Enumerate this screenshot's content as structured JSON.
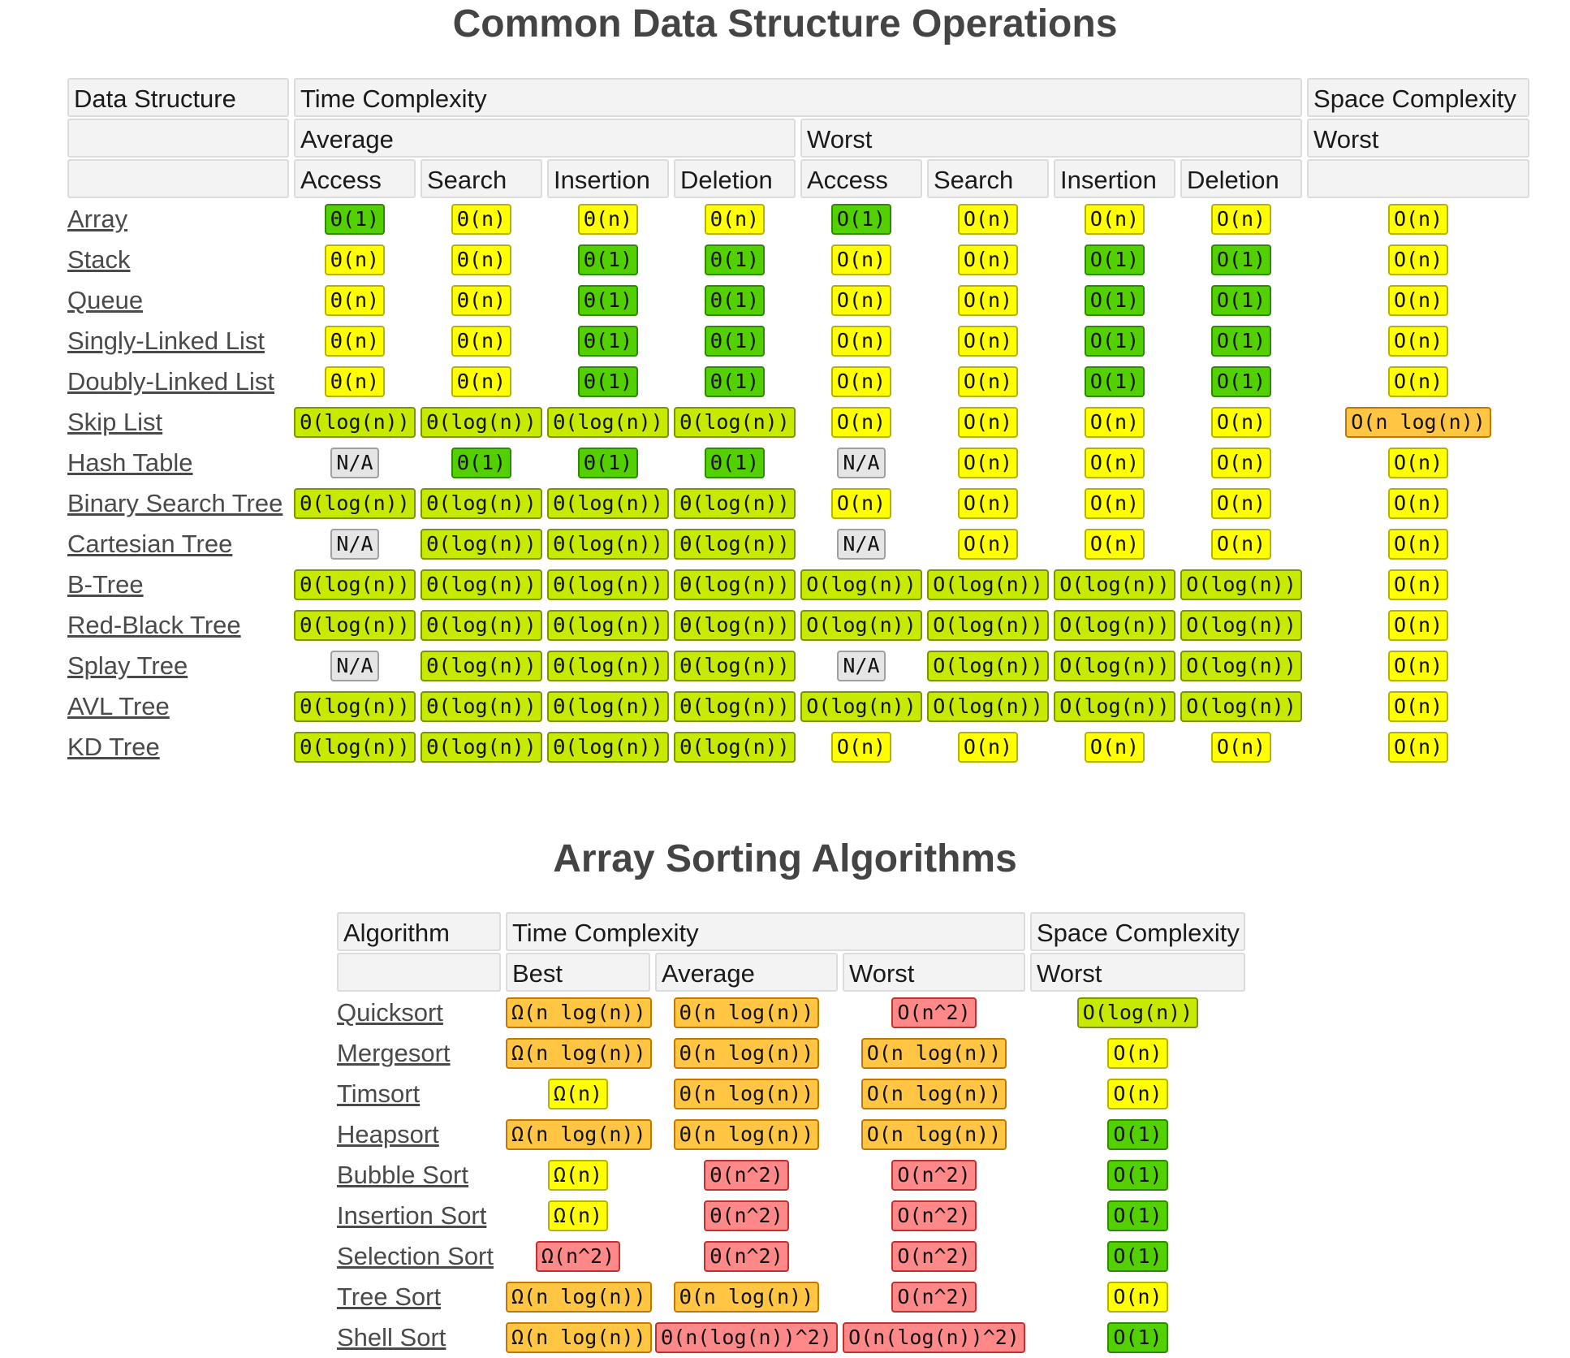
{
  "section1": {
    "title": "Common Data Structure Operations",
    "headers": {
      "data_structure": "Data Structure",
      "time_complexity": "Time Complexity",
      "space_complexity": "Space Complexity",
      "average": "Average",
      "worst": "Worst",
      "space_worst": "Worst",
      "ops": [
        "Access",
        "Search",
        "Insertion",
        "Deletion",
        "Access",
        "Search",
        "Insertion",
        "Deletion"
      ]
    },
    "rows": [
      {
        "name": "Array",
        "cells": [
          [
            "Θ(1)",
            "green"
          ],
          [
            "Θ(n)",
            "yellow"
          ],
          [
            "Θ(n)",
            "yellow"
          ],
          [
            "Θ(n)",
            "yellow"
          ],
          [
            "O(1)",
            "green"
          ],
          [
            "O(n)",
            "yellow"
          ],
          [
            "O(n)",
            "yellow"
          ],
          [
            "O(n)",
            "yellow"
          ],
          [
            "O(n)",
            "yellow"
          ]
        ]
      },
      {
        "name": "Stack",
        "cells": [
          [
            "Θ(n)",
            "yellow"
          ],
          [
            "Θ(n)",
            "yellow"
          ],
          [
            "Θ(1)",
            "green"
          ],
          [
            "Θ(1)",
            "green"
          ],
          [
            "O(n)",
            "yellow"
          ],
          [
            "O(n)",
            "yellow"
          ],
          [
            "O(1)",
            "green"
          ],
          [
            "O(1)",
            "green"
          ],
          [
            "O(n)",
            "yellow"
          ]
        ]
      },
      {
        "name": "Queue",
        "cells": [
          [
            "Θ(n)",
            "yellow"
          ],
          [
            "Θ(n)",
            "yellow"
          ],
          [
            "Θ(1)",
            "green"
          ],
          [
            "Θ(1)",
            "green"
          ],
          [
            "O(n)",
            "yellow"
          ],
          [
            "O(n)",
            "yellow"
          ],
          [
            "O(1)",
            "green"
          ],
          [
            "O(1)",
            "green"
          ],
          [
            "O(n)",
            "yellow"
          ]
        ]
      },
      {
        "name": "Singly-Linked List",
        "cells": [
          [
            "Θ(n)",
            "yellow"
          ],
          [
            "Θ(n)",
            "yellow"
          ],
          [
            "Θ(1)",
            "green"
          ],
          [
            "Θ(1)",
            "green"
          ],
          [
            "O(n)",
            "yellow"
          ],
          [
            "O(n)",
            "yellow"
          ],
          [
            "O(1)",
            "green"
          ],
          [
            "O(1)",
            "green"
          ],
          [
            "O(n)",
            "yellow"
          ]
        ]
      },
      {
        "name": "Doubly-Linked List",
        "cells": [
          [
            "Θ(n)",
            "yellow"
          ],
          [
            "Θ(n)",
            "yellow"
          ],
          [
            "Θ(1)",
            "green"
          ],
          [
            "Θ(1)",
            "green"
          ],
          [
            "O(n)",
            "yellow"
          ],
          [
            "O(n)",
            "yellow"
          ],
          [
            "O(1)",
            "green"
          ],
          [
            "O(1)",
            "green"
          ],
          [
            "O(n)",
            "yellow"
          ]
        ]
      },
      {
        "name": "Skip List",
        "cells": [
          [
            "Θ(log(n))",
            "lgreen"
          ],
          [
            "Θ(log(n))",
            "lgreen"
          ],
          [
            "Θ(log(n))",
            "lgreen"
          ],
          [
            "Θ(log(n))",
            "lgreen"
          ],
          [
            "O(n)",
            "yellow"
          ],
          [
            "O(n)",
            "yellow"
          ],
          [
            "O(n)",
            "yellow"
          ],
          [
            "O(n)",
            "yellow"
          ],
          [
            "O(n log(n))",
            "orange"
          ]
        ]
      },
      {
        "name": "Hash Table",
        "cells": [
          [
            "N/A",
            "gray"
          ],
          [
            "Θ(1)",
            "green"
          ],
          [
            "Θ(1)",
            "green"
          ],
          [
            "Θ(1)",
            "green"
          ],
          [
            "N/A",
            "gray"
          ],
          [
            "O(n)",
            "yellow"
          ],
          [
            "O(n)",
            "yellow"
          ],
          [
            "O(n)",
            "yellow"
          ],
          [
            "O(n)",
            "yellow"
          ]
        ]
      },
      {
        "name": "Binary Search Tree",
        "cells": [
          [
            "Θ(log(n))",
            "lgreen"
          ],
          [
            "Θ(log(n))",
            "lgreen"
          ],
          [
            "Θ(log(n))",
            "lgreen"
          ],
          [
            "Θ(log(n))",
            "lgreen"
          ],
          [
            "O(n)",
            "yellow"
          ],
          [
            "O(n)",
            "yellow"
          ],
          [
            "O(n)",
            "yellow"
          ],
          [
            "O(n)",
            "yellow"
          ],
          [
            "O(n)",
            "yellow"
          ]
        ]
      },
      {
        "name": "Cartesian Tree",
        "cells": [
          [
            "N/A",
            "gray"
          ],
          [
            "Θ(log(n))",
            "lgreen"
          ],
          [
            "Θ(log(n))",
            "lgreen"
          ],
          [
            "Θ(log(n))",
            "lgreen"
          ],
          [
            "N/A",
            "gray"
          ],
          [
            "O(n)",
            "yellow"
          ],
          [
            "O(n)",
            "yellow"
          ],
          [
            "O(n)",
            "yellow"
          ],
          [
            "O(n)",
            "yellow"
          ]
        ]
      },
      {
        "name": "B-Tree",
        "cells": [
          [
            "Θ(log(n))",
            "lgreen"
          ],
          [
            "Θ(log(n))",
            "lgreen"
          ],
          [
            "Θ(log(n))",
            "lgreen"
          ],
          [
            "Θ(log(n))",
            "lgreen"
          ],
          [
            "O(log(n))",
            "lgreen"
          ],
          [
            "O(log(n))",
            "lgreen"
          ],
          [
            "O(log(n))",
            "lgreen"
          ],
          [
            "O(log(n))",
            "lgreen"
          ],
          [
            "O(n)",
            "yellow"
          ]
        ]
      },
      {
        "name": "Red-Black Tree",
        "cells": [
          [
            "Θ(log(n))",
            "lgreen"
          ],
          [
            "Θ(log(n))",
            "lgreen"
          ],
          [
            "Θ(log(n))",
            "lgreen"
          ],
          [
            "Θ(log(n))",
            "lgreen"
          ],
          [
            "O(log(n))",
            "lgreen"
          ],
          [
            "O(log(n))",
            "lgreen"
          ],
          [
            "O(log(n))",
            "lgreen"
          ],
          [
            "O(log(n))",
            "lgreen"
          ],
          [
            "O(n)",
            "yellow"
          ]
        ]
      },
      {
        "name": "Splay Tree",
        "cells": [
          [
            "N/A",
            "gray"
          ],
          [
            "Θ(log(n))",
            "lgreen"
          ],
          [
            "Θ(log(n))",
            "lgreen"
          ],
          [
            "Θ(log(n))",
            "lgreen"
          ],
          [
            "N/A",
            "gray"
          ],
          [
            "O(log(n))",
            "lgreen"
          ],
          [
            "O(log(n))",
            "lgreen"
          ],
          [
            "O(log(n))",
            "lgreen"
          ],
          [
            "O(n)",
            "yellow"
          ]
        ]
      },
      {
        "name": "AVL Tree",
        "cells": [
          [
            "Θ(log(n))",
            "lgreen"
          ],
          [
            "Θ(log(n))",
            "lgreen"
          ],
          [
            "Θ(log(n))",
            "lgreen"
          ],
          [
            "Θ(log(n))",
            "lgreen"
          ],
          [
            "O(log(n))",
            "lgreen"
          ],
          [
            "O(log(n))",
            "lgreen"
          ],
          [
            "O(log(n))",
            "lgreen"
          ],
          [
            "O(log(n))",
            "lgreen"
          ],
          [
            "O(n)",
            "yellow"
          ]
        ]
      },
      {
        "name": "KD Tree",
        "cells": [
          [
            "Θ(log(n))",
            "lgreen"
          ],
          [
            "Θ(log(n))",
            "lgreen"
          ],
          [
            "Θ(log(n))",
            "lgreen"
          ],
          [
            "Θ(log(n))",
            "lgreen"
          ],
          [
            "O(n)",
            "yellow"
          ],
          [
            "O(n)",
            "yellow"
          ],
          [
            "O(n)",
            "yellow"
          ],
          [
            "O(n)",
            "yellow"
          ],
          [
            "O(n)",
            "yellow"
          ]
        ]
      }
    ]
  },
  "section2": {
    "title": "Array Sorting Algorithms",
    "headers": {
      "algorithm": "Algorithm",
      "time_complexity": "Time Complexity",
      "space_complexity": "Space Complexity",
      "best": "Best",
      "average": "Average",
      "worst": "Worst",
      "space_worst": "Worst"
    },
    "rows": [
      {
        "name": "Quicksort",
        "cells": [
          [
            "Ω(n log(n))",
            "orange"
          ],
          [
            "Θ(n log(n))",
            "orange"
          ],
          [
            "O(n^2)",
            "red"
          ],
          [
            "O(log(n))",
            "lgreen"
          ]
        ]
      },
      {
        "name": "Mergesort",
        "cells": [
          [
            "Ω(n log(n))",
            "orange"
          ],
          [
            "Θ(n log(n))",
            "orange"
          ],
          [
            "O(n log(n))",
            "orange"
          ],
          [
            "O(n)",
            "yellow"
          ]
        ]
      },
      {
        "name": "Timsort",
        "cells": [
          [
            "Ω(n)",
            "yellow"
          ],
          [
            "Θ(n log(n))",
            "orange"
          ],
          [
            "O(n log(n))",
            "orange"
          ],
          [
            "O(n)",
            "yellow"
          ]
        ]
      },
      {
        "name": "Heapsort",
        "cells": [
          [
            "Ω(n log(n))",
            "orange"
          ],
          [
            "Θ(n log(n))",
            "orange"
          ],
          [
            "O(n log(n))",
            "orange"
          ],
          [
            "O(1)",
            "green"
          ]
        ]
      },
      {
        "name": "Bubble Sort",
        "cells": [
          [
            "Ω(n)",
            "yellow"
          ],
          [
            "Θ(n^2)",
            "red"
          ],
          [
            "O(n^2)",
            "red"
          ],
          [
            "O(1)",
            "green"
          ]
        ]
      },
      {
        "name": "Insertion Sort",
        "cells": [
          [
            "Ω(n)",
            "yellow"
          ],
          [
            "Θ(n^2)",
            "red"
          ],
          [
            "O(n^2)",
            "red"
          ],
          [
            "O(1)",
            "green"
          ]
        ]
      },
      {
        "name": "Selection Sort",
        "cells": [
          [
            "Ω(n^2)",
            "red"
          ],
          [
            "Θ(n^2)",
            "red"
          ],
          [
            "O(n^2)",
            "red"
          ],
          [
            "O(1)",
            "green"
          ]
        ]
      },
      {
        "name": "Tree Sort",
        "cells": [
          [
            "Ω(n log(n))",
            "orange"
          ],
          [
            "Θ(n log(n))",
            "orange"
          ],
          [
            "O(n^2)",
            "red"
          ],
          [
            "O(n)",
            "yellow"
          ]
        ]
      },
      {
        "name": "Shell Sort",
        "cells": [
          [
            "Ω(n log(n))",
            "orange"
          ],
          [
            "Θ(n(log(n))^2)",
            "red"
          ],
          [
            "O(n(log(n))^2)",
            "red"
          ],
          [
            "O(1)",
            "green"
          ]
        ]
      }
    ]
  },
  "colors": {
    "green": "#53d000",
    "lgreen": "#c8ea00",
    "yellow": "#ffff00",
    "orange": "#ffc543",
    "red": "#ff8989",
    "gray": "#e5e5e5"
  }
}
